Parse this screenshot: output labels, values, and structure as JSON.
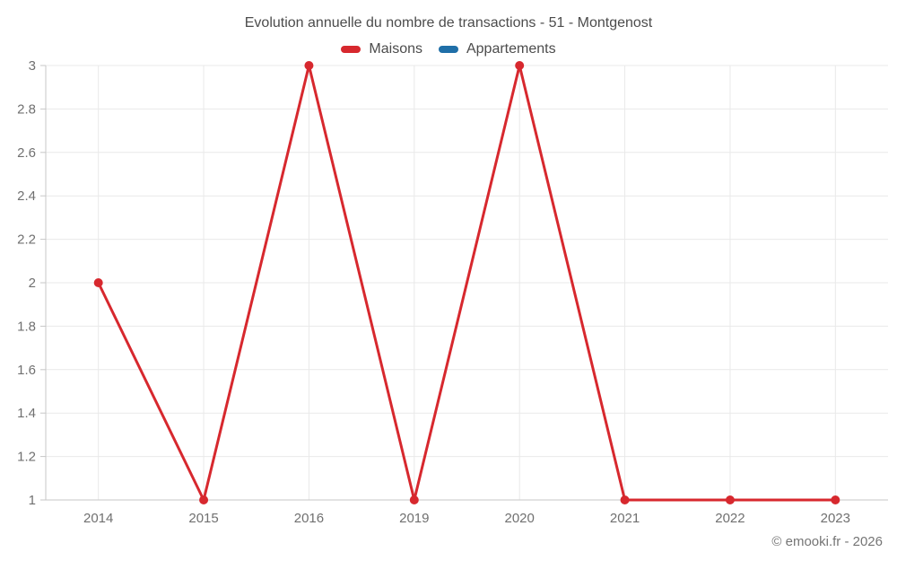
{
  "header": {
    "title": "Evolution annuelle du nombre de transactions - 51 - Montgenost"
  },
  "legend": {
    "items": [
      {
        "label": "Maisons",
        "color": "#d7282e"
      },
      {
        "label": "Appartements",
        "color": "#1f6fa8"
      }
    ]
  },
  "footer": {
    "copyright": "© emooki.fr - 2026"
  },
  "chart_data": {
    "type": "line",
    "title": "Evolution annuelle du nombre de transactions - 51 - Montgenost",
    "categories": [
      "2014",
      "2015",
      "2016",
      "2019",
      "2020",
      "2021",
      "2022",
      "2023"
    ],
    "series": [
      {
        "name": "Maisons",
        "color": "#d7282e",
        "values": [
          2,
          1,
          3,
          1,
          3,
          1,
          1,
          1
        ]
      },
      {
        "name": "Appartements",
        "color": "#1f6fa8",
        "values": []
      }
    ],
    "xlabel": "",
    "ylabel": "",
    "ylim": [
      1,
      3
    ],
    "ytick_step": 0.2,
    "yticks": [
      1,
      1.2,
      1.4,
      1.6,
      1.8,
      2,
      2.2,
      2.4,
      2.6,
      2.8,
      3
    ],
    "grid": true,
    "legend_position": "top",
    "grid_color": "#e9e9e9",
    "axis_color": "#c7c7c7",
    "tick_label_color": "#707070"
  }
}
